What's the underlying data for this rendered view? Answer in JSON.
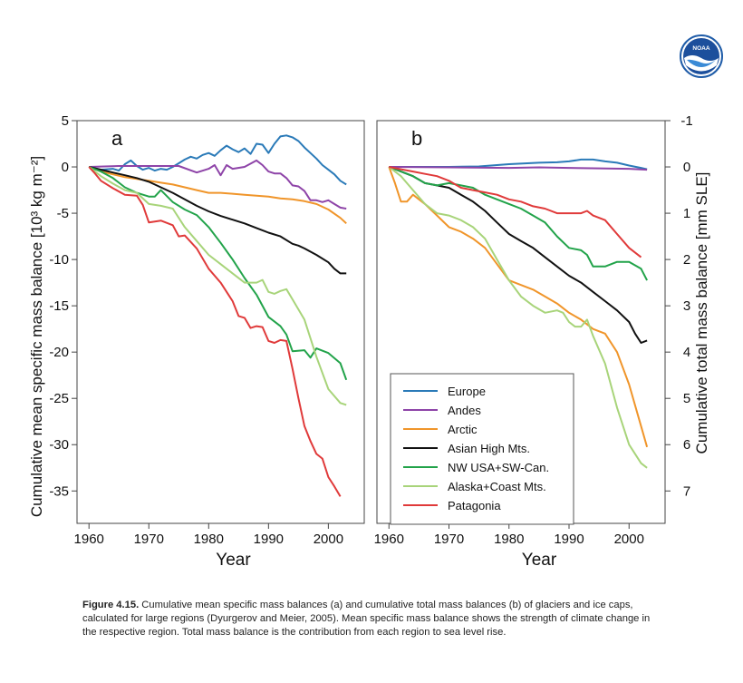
{
  "caption": {
    "label": "Figure 4.15.",
    "text": " Cumulative mean specific mass balances (a) and cumulative total mass balances (b) of glaciers and ice caps, calculated for large regions (Dyurgerov and Meier, 2005). Mean specific mass balance shows the strength of climate change in the respective region. Total mass balance is the contribution from each region to sea level rise."
  },
  "logo": {
    "icon": "noaa-logo-icon",
    "text": "NOAA"
  },
  "colors": {
    "Europe": "#2a7ab8",
    "Andes": "#8e44a8",
    "Arctic": "#f0952a",
    "Asian High Mts.": "#111111",
    "NW USA+SW-Can.": "#22a34a",
    "Alaska+Coast Mts.": "#a8d47a",
    "Patagonia": "#e03a3a"
  },
  "chart_data": [
    {
      "type": "line",
      "panel_label": "a",
      "xlabel": "Year",
      "ylabel": "Cumulative mean specific mass balance [10³ kg m⁻²]",
      "xlim": [
        1958,
        2006
      ],
      "ylim": [
        -38.5,
        5
      ],
      "xticks": [
        "1960",
        "1970",
        "1980",
        "1990",
        "2000"
      ],
      "yticks": [
        "5",
        "0",
        "-5",
        "-10",
        "-15",
        "-20",
        "-25",
        "-30",
        "-35"
      ],
      "series": [
        {
          "name": "Europe",
          "x": [
            1960,
            1962,
            1964,
            1965,
            1966,
            1967,
            1968,
            1969,
            1970,
            1971,
            1972,
            1973,
            1974,
            1975,
            1976,
            1977,
            1978,
            1979,
            1980,
            1981,
            1982,
            1983,
            1984,
            1985,
            1986,
            1987,
            1988,
            1989,
            1990,
            1991,
            1992,
            1993,
            1994,
            1995,
            1996,
            1997,
            1998,
            1999,
            2000,
            2001,
            2002,
            2003
          ],
          "y": [
            0,
            -0.3,
            -0.2,
            -0.4,
            0.3,
            0.7,
            0.1,
            -0.3,
            -0.1,
            -0.4,
            -0.2,
            -0.3,
            0,
            0.4,
            0.8,
            1.1,
            0.9,
            1.3,
            1.5,
            1.2,
            1.8,
            2.3,
            1.9,
            1.6,
            2,
            1.4,
            2.5,
            2.4,
            1.5,
            2.5,
            3.3,
            3.4,
            3.2,
            2.8,
            2.1,
            1.5,
            0.9,
            0.2,
            -0.3,
            -0.8,
            -1.5,
            -1.9
          ]
        },
        {
          "name": "Andes",
          "x": [
            1960,
            1965,
            1970,
            1975,
            1978,
            1980,
            1981,
            1982,
            1983,
            1984,
            1986,
            1988,
            1989,
            1990,
            1991,
            1992,
            1993,
            1994,
            1995,
            1996,
            1997,
            1998,
            1999,
            2000,
            2001,
            2002,
            2003
          ],
          "y": [
            0,
            0.1,
            0.1,
            0.1,
            -0.6,
            -0.2,
            0.2,
            -0.9,
            0.2,
            -0.2,
            0,
            0.7,
            0.2,
            -0.5,
            -0.7,
            -0.7,
            -1.2,
            -2,
            -2.1,
            -2.6,
            -3.6,
            -3.6,
            -3.8,
            -3.6,
            -4,
            -4.4,
            -4.5
          ]
        },
        {
          "name": "Arctic",
          "x": [
            1960,
            1962,
            1964,
            1966,
            1968,
            1970,
            1972,
            1974,
            1976,
            1978,
            1980,
            1982,
            1984,
            1986,
            1988,
            1990,
            1992,
            1994,
            1996,
            1998,
            2000,
            2002,
            2003
          ],
          "y": [
            0,
            -0.5,
            -0.8,
            -1.1,
            -1.3,
            -1.5,
            -1.7,
            -1.9,
            -2.2,
            -2.5,
            -2.8,
            -2.8,
            -2.9,
            -3,
            -3.1,
            -3.2,
            -3.4,
            -3.5,
            -3.7,
            -4,
            -4.6,
            -5.5,
            -6.1
          ]
        },
        {
          "name": "Asian High Mts.",
          "x": [
            1960,
            1962,
            1964,
            1966,
            1968,
            1970,
            1972,
            1974,
            1976,
            1978,
            1980,
            1982,
            1984,
            1986,
            1988,
            1990,
            1992,
            1994,
            1995,
            1996,
            1998,
            2000,
            2001,
            2002,
            2003
          ],
          "y": [
            0,
            -0.3,
            -0.6,
            -0.9,
            -1.2,
            -1.6,
            -2.2,
            -2.8,
            -3.5,
            -4.2,
            -4.8,
            -5.3,
            -5.7,
            -6.1,
            -6.6,
            -7.1,
            -7.5,
            -8.3,
            -8.5,
            -8.8,
            -9.5,
            -10.3,
            -11,
            -11.5,
            -11.5
          ]
        },
        {
          "name": "NW USA+SW-Can.",
          "x": [
            1960,
            1962,
            1964,
            1966,
            1968,
            1970,
            1971,
            1972,
            1974,
            1976,
            1978,
            1980,
            1982,
            1984,
            1986,
            1988,
            1990,
            1992,
            1993,
            1994,
            1996,
            1997,
            1998,
            2000,
            2002,
            2003
          ],
          "y": [
            0,
            -0.5,
            -1.2,
            -2.2,
            -2.8,
            -3.2,
            -3.2,
            -2.5,
            -3.8,
            -4.6,
            -5.2,
            -6.5,
            -8.2,
            -10,
            -12,
            -13.8,
            -16.2,
            -17.2,
            -18.1,
            -19.9,
            -19.8,
            -20.6,
            -19.6,
            -20.1,
            -21.2,
            -23
          ]
        },
        {
          "name": "Alaska+Coast Mts.",
          "x": [
            1960,
            1962,
            1964,
            1966,
            1968,
            1970,
            1972,
            1974,
            1976,
            1978,
            1980,
            1982,
            1984,
            1986,
            1988,
            1989,
            1990,
            1991,
            1992,
            1993,
            1994,
            1996,
            1998,
            2000,
            2002,
            2003
          ],
          "y": [
            0,
            -1,
            -1.8,
            -2.5,
            -2.8,
            -4,
            -4.2,
            -4.5,
            -6.5,
            -8,
            -9.5,
            -10.5,
            -11.5,
            -12.5,
            -12.5,
            -12.2,
            -13.5,
            -13.7,
            -13.4,
            -13.2,
            -14.3,
            -16.5,
            -20.5,
            -24,
            -25.5,
            -25.7
          ]
        },
        {
          "name": "Patagonia",
          "x": [
            1960,
            1961,
            1962,
            1964,
            1966,
            1968,
            1969,
            1970,
            1972,
            1974,
            1975,
            1976,
            1978,
            1980,
            1982,
            1984,
            1985,
            1986,
            1987,
            1988,
            1989,
            1990,
            1991,
            1992,
            1993,
            1994,
            1995,
            1996,
            1997,
            1998,
            1999,
            2000,
            2001,
            2002
          ],
          "y": [
            0,
            -0.7,
            -1.5,
            -2.3,
            -3,
            -3.1,
            -4.1,
            -6,
            -5.8,
            -6.3,
            -7.5,
            -7.4,
            -8.8,
            -11,
            -12.5,
            -14.5,
            -16.1,
            -16.3,
            -17.4,
            -17.2,
            -17.3,
            -18.8,
            -19,
            -18.7,
            -18.8,
            -21.8,
            -25,
            -28,
            -29.6,
            -31,
            -31.5,
            -33.5,
            -34.5,
            -35.6
          ]
        }
      ]
    },
    {
      "type": "line",
      "panel_label": "b",
      "xlabel": "Year",
      "ylabel": "Cumulative total mass balance [mm SLE]",
      "xlim": [
        1958,
        2006
      ],
      "ylim": [
        7.7,
        -1
      ],
      "xticks": [
        "1960",
        "1970",
        "1980",
        "1990",
        "2000"
      ],
      "yticks": [
        "-1",
        "0",
        "1",
        "2",
        "3",
        "4",
        "5",
        "6",
        "7"
      ],
      "series": [
        {
          "name": "Europe",
          "x": [
            1960,
            1965,
            1970,
            1975,
            1978,
            1980,
            1985,
            1988,
            1990,
            1992,
            1994,
            1996,
            1998,
            2000,
            2002,
            2003
          ],
          "y": [
            0,
            0,
            0,
            -0.01,
            -0.04,
            -0.06,
            -0.09,
            -0.1,
            -0.12,
            -0.16,
            -0.16,
            -0.12,
            -0.09,
            -0.03,
            0.02,
            0.05
          ]
        },
        {
          "name": "Andes",
          "x": [
            1960,
            1970,
            1980,
            1985,
            1990,
            1995,
            2000,
            2003
          ],
          "y": [
            0,
            0.01,
            0.02,
            0.01,
            0.02,
            0.03,
            0.04,
            0.06
          ]
        },
        {
          "name": "Arctic",
          "x": [
            1960,
            1961,
            1962,
            1963,
            1964,
            1966,
            1968,
            1970,
            1972,
            1974,
            1976,
            1978,
            1980,
            1982,
            1984,
            1986,
            1988,
            1990,
            1992,
            1994,
            1996,
            1998,
            2000,
            2002,
            2003
          ],
          "y": [
            0,
            0.35,
            0.75,
            0.75,
            0.6,
            0.8,
            1.05,
            1.3,
            1.4,
            1.55,
            1.75,
            2.1,
            2.45,
            2.55,
            2.65,
            2.8,
            2.95,
            3.15,
            3.3,
            3.5,
            3.6,
            4,
            4.7,
            5.6,
            6.05
          ]
        },
        {
          "name": "Asian High Mts.",
          "x": [
            1960,
            1962,
            1964,
            1966,
            1968,
            1970,
            1972,
            1974,
            1976,
            1978,
            1980,
            1982,
            1984,
            1986,
            1988,
            1990,
            1992,
            1994,
            1996,
            1998,
            2000,
            2001,
            2002,
            2003
          ],
          "y": [
            0,
            0.1,
            0.2,
            0.35,
            0.4,
            0.45,
            0.6,
            0.75,
            0.95,
            1.2,
            1.45,
            1.6,
            1.75,
            1.95,
            2.15,
            2.35,
            2.5,
            2.7,
            2.9,
            3.1,
            3.35,
            3.6,
            3.8,
            3.75
          ]
        },
        {
          "name": "NW USA+SW-Can.",
          "x": [
            1960,
            1962,
            1964,
            1966,
            1968,
            1970,
            1972,
            1974,
            1976,
            1978,
            1980,
            1982,
            1984,
            1986,
            1988,
            1990,
            1992,
            1993,
            1994,
            1996,
            1998,
            2000,
            2002,
            2003
          ],
          "y": [
            0,
            0.1,
            0.2,
            0.35,
            0.4,
            0.35,
            0.4,
            0.45,
            0.6,
            0.7,
            0.8,
            0.9,
            1.05,
            1.2,
            1.5,
            1.75,
            1.8,
            1.9,
            2.15,
            2.15,
            2.05,
            2.05,
            2.2,
            2.45
          ]
        },
        {
          "name": "Alaska+Coast Mts.",
          "x": [
            1960,
            1962,
            1964,
            1966,
            1968,
            1970,
            1972,
            1974,
            1976,
            1978,
            1980,
            1982,
            1984,
            1986,
            1988,
            1989,
            1990,
            1991,
            1992,
            1993,
            1994,
            1996,
            1998,
            2000,
            2002,
            2003
          ],
          "y": [
            0,
            0.2,
            0.5,
            0.8,
            1,
            1.05,
            1.15,
            1.3,
            1.55,
            2,
            2.45,
            2.8,
            3,
            3.15,
            3.1,
            3.15,
            3.35,
            3.45,
            3.45,
            3.3,
            3.65,
            4.25,
            5.2,
            6,
            6.4,
            6.5
          ]
        },
        {
          "name": "Patagonia",
          "x": [
            1960,
            1962,
            1964,
            1966,
            1968,
            1970,
            1972,
            1974,
            1976,
            1978,
            1980,
            1982,
            1984,
            1986,
            1988,
            1990,
            1992,
            1993,
            1994,
            1996,
            1998,
            2000,
            2002
          ],
          "y": [
            0,
            0.05,
            0.1,
            0.15,
            0.2,
            0.3,
            0.45,
            0.5,
            0.55,
            0.6,
            0.7,
            0.75,
            0.85,
            0.9,
            1,
            1,
            1,
            0.95,
            1.05,
            1.15,
            1.45,
            1.75,
            1.95
          ]
        }
      ]
    }
  ]
}
